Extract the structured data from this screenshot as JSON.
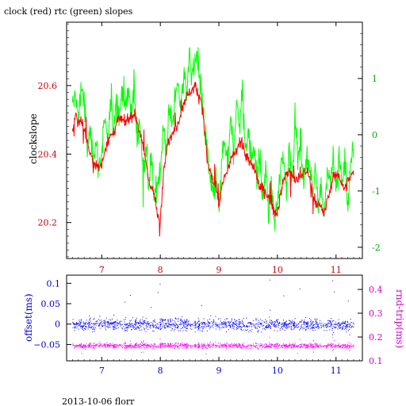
{
  "title": "clock (red) rtc (green) slopes",
  "footer": "2013-10-06 florr",
  "colors": {
    "clock": "#ff0000",
    "rtc": "#00ff00",
    "offset": "#0000ff",
    "rndtrip": "#ff00ff",
    "axes": "#000000"
  },
  "chart_data": [
    {
      "type": "line",
      "title": "clock (red) rtc (green) slopes",
      "ylabel": "clockslope",
      "y2label": "",
      "xlim": [
        6.4,
        11.45
      ],
      "ylim": [
        20.095,
        20.785
      ],
      "y2lim": [
        -2.2,
        2.0
      ],
      "xticks": [
        7,
        8,
        9,
        10,
        11
      ],
      "yticks": [
        20.2,
        20.4,
        20.6
      ],
      "y2ticks": [
        -2,
        -1,
        0,
        1
      ],
      "series": [
        {
          "name": "clock",
          "axis": "left",
          "x": [
            6.5,
            6.55,
            6.6,
            6.65,
            6.7,
            6.75,
            6.8,
            6.85,
            6.9,
            6.95,
            7.0,
            7.05,
            7.1,
            7.15,
            7.2,
            7.25,
            7.3,
            7.35,
            7.4,
            7.45,
            7.5,
            7.55,
            7.6,
            7.65,
            7.7,
            7.75,
            7.8,
            7.85,
            7.9,
            7.95,
            8.0,
            8.05,
            8.1,
            8.15,
            8.2,
            8.25,
            8.3,
            8.35,
            8.4,
            8.45,
            8.5,
            8.55,
            8.6,
            8.65,
            8.7,
            8.75,
            8.8,
            8.85,
            8.9,
            8.95,
            9.0,
            9.05,
            9.1,
            9.15,
            9.2,
            9.25,
            9.3,
            9.35,
            9.4,
            9.45,
            9.5,
            9.55,
            9.6,
            9.65,
            9.7,
            9.75,
            9.8,
            9.85,
            9.9,
            9.95,
            10.0,
            10.05,
            10.1,
            10.15,
            10.2,
            10.25,
            10.3,
            10.35,
            10.4,
            10.45,
            10.5,
            10.55,
            10.6,
            10.65,
            10.7,
            10.75,
            10.8,
            10.85,
            10.9,
            10.95,
            11.0,
            11.05,
            11.1,
            11.15,
            11.2,
            11.25,
            11.3
          ],
          "values": [
            20.46,
            20.52,
            20.49,
            20.5,
            20.47,
            20.44,
            20.4,
            20.38,
            20.37,
            20.36,
            20.37,
            20.41,
            20.44,
            20.45,
            20.46,
            20.49,
            20.5,
            20.5,
            20.49,
            20.5,
            20.51,
            20.52,
            20.5,
            20.46,
            20.42,
            20.38,
            20.33,
            20.3,
            20.28,
            20.22,
            20.2,
            20.34,
            20.42,
            20.44,
            20.46,
            20.47,
            20.49,
            20.52,
            20.55,
            20.57,
            20.58,
            20.59,
            20.6,
            20.57,
            20.56,
            20.48,
            20.38,
            20.35,
            20.32,
            20.3,
            20.24,
            20.31,
            20.33,
            20.35,
            20.38,
            20.4,
            20.41,
            20.44,
            20.43,
            20.4,
            20.38,
            20.37,
            20.36,
            20.33,
            20.3,
            20.3,
            20.29,
            20.27,
            20.26,
            20.23,
            20.23,
            20.28,
            20.32,
            20.34,
            20.35,
            20.34,
            20.32,
            20.33,
            20.33,
            20.35,
            20.35,
            20.33,
            20.28,
            20.26,
            20.25,
            20.24,
            20.22,
            20.27,
            20.3,
            20.33,
            20.34,
            20.34,
            20.31,
            20.3,
            20.32,
            20.33,
            20.35
          ]
        },
        {
          "name": "rtc",
          "axis": "right",
          "x": [
            6.5,
            6.55,
            6.6,
            6.65,
            6.7,
            6.75,
            6.8,
            6.85,
            6.9,
            6.95,
            7.0,
            7.05,
            7.1,
            7.15,
            7.2,
            7.25,
            7.3,
            7.35,
            7.4,
            7.45,
            7.5,
            7.55,
            7.6,
            7.65,
            7.7,
            7.75,
            7.8,
            7.85,
            7.9,
            7.95,
            8.0,
            8.05,
            8.1,
            8.15,
            8.2,
            8.25,
            8.3,
            8.35,
            8.4,
            8.45,
            8.5,
            8.55,
            8.6,
            8.65,
            8.7,
            8.75,
            8.8,
            8.85,
            8.9,
            8.95,
            9.0,
            9.05,
            9.1,
            9.15,
            9.2,
            9.25,
            9.3,
            9.35,
            9.4,
            9.45,
            9.5,
            9.55,
            9.6,
            9.65,
            9.7,
            9.75,
            9.8,
            9.85,
            9.9,
            9.95,
            10.0,
            10.05,
            10.1,
            10.15,
            10.2,
            10.25,
            10.3,
            10.35,
            10.4,
            10.45,
            10.5,
            10.55,
            10.6,
            10.65,
            10.7,
            10.75,
            10.8,
            10.85,
            10.9,
            10.95,
            11.0,
            11.05,
            11.1,
            11.15,
            11.2,
            11.25,
            11.3
          ],
          "values": [
            0.4,
            0.8,
            0.2,
            0.9,
            0.6,
            -0.3,
            0.1,
            -0.4,
            -0.1,
            -0.6,
            -0.3,
            0.3,
            -0.2,
            0.5,
            0.1,
            0.7,
            0.3,
            0.9,
            0.5,
            0.8,
            0.4,
            0.9,
            -0.1,
            0.3,
            -0.6,
            -0.2,
            -0.9,
            -0.5,
            -1.2,
            -0.8,
            -0.6,
            0.1,
            -0.3,
            0.4,
            0.2,
            0.6,
            0.9,
            0.5,
            1.1,
            0.8,
            1.4,
            1.0,
            1.5,
            1.1,
            0.9,
            0.1,
            -0.3,
            -0.9,
            -1.1,
            -0.7,
            -1.4,
            -0.5,
            -0.1,
            -0.6,
            0.2,
            -0.2,
            0.6,
            0.1,
            0.8,
            -0.3,
            0.2,
            -0.5,
            -0.1,
            -0.8,
            -0.4,
            -1.2,
            -0.6,
            -1.3,
            -0.9,
            -1.6,
            -1.2,
            -0.7,
            -0.3,
            -1.0,
            -0.2,
            -0.8,
            0.3,
            -0.4,
            -0.2,
            -0.9,
            -0.3,
            -0.6,
            -1.1,
            -0.5,
            -1.2,
            -0.9,
            -1.4,
            -0.6,
            -0.9,
            -0.4,
            -1.0,
            -0.3,
            -0.9,
            -0.5,
            -1.3,
            -0.6,
            -0.2
          ]
        }
      ]
    },
    {
      "type": "scatter",
      "ylabel": "offset(ms)",
      "y2label": "rnd-trip(ms)",
      "xlim": [
        6.4,
        11.45
      ],
      "ylim": [
        -0.09,
        0.12
      ],
      "y2lim": [
        0.1,
        0.46
      ],
      "xticks": [
        7,
        8,
        9,
        10,
        11
      ],
      "yticks": [
        -0.05,
        0,
        0.05,
        0.1
      ],
      "ytick_labels": [
        "−0.05",
        "0",
        "0.05",
        "0.1"
      ],
      "y2ticks": [
        0.1,
        0.2,
        0.3,
        0.4
      ],
      "y2tick_labels": [
        "0.1",
        "0.2",
        "0.3",
        "0.4"
      ],
      "series": [
        {
          "name": "offset",
          "axis": "left",
          "x_range": [
            6.5,
            11.3
          ],
          "center": 0.0,
          "spread": 0.02,
          "outlier_range": [
            -0.06,
            0.11
          ]
        },
        {
          "name": "rnd-trip",
          "axis": "right",
          "x_range": [
            6.5,
            11.3
          ],
          "center": 0.165,
          "spread": 0.015,
          "outlier_range": [
            0.13,
            0.2
          ]
        }
      ]
    }
  ]
}
